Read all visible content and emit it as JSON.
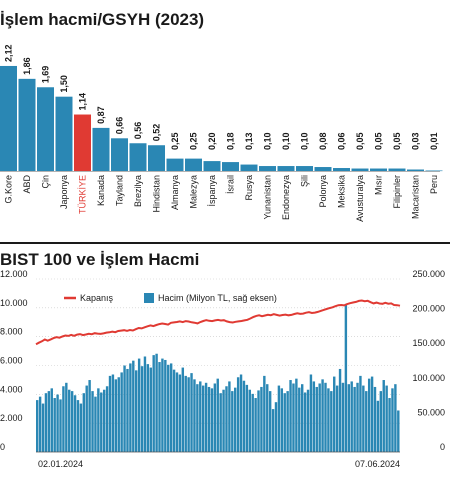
{
  "colors": {
    "bar": "#2a87b4",
    "highlight": "#e03a33",
    "line": "#e03a33",
    "volume": "#2a87b4",
    "text": "#1a1a1a",
    "grid": "#c8c8c8"
  },
  "chart_data": [
    {
      "type": "bar",
      "title": "İşlem hacmi/GSYH (2023)",
      "categories": [
        "G.Kore",
        "ABD",
        "Çin",
        "Japonya",
        "TÜRKİYE",
        "Kanada",
        "Tayland",
        "Brezilya",
        "Hindistan",
        "Almanya",
        "Malezya",
        "İspanya",
        "İsrail",
        "Rusya",
        "Yunanistan",
        "Endonezya",
        "Şili",
        "Polonya",
        "Meksika",
        "Avusturalya",
        "Mısır",
        "Filipinler",
        "Macaristan",
        "Peru"
      ],
      "value_labels": [
        "2,12",
        "1,86",
        "1,69",
        "1,50",
        "1,14",
        "0,87",
        "0,66",
        "0,56",
        "0,52",
        "0,25",
        "0,25",
        "0,20",
        "0,18",
        "0,13",
        "0,10",
        "0,10",
        "0,10",
        "0,08",
        "0,06",
        "0,05",
        "0,05",
        "0,05",
        "0,03",
        "0,01"
      ],
      "values": [
        2.12,
        1.86,
        1.69,
        1.5,
        1.14,
        0.87,
        0.66,
        0.56,
        0.52,
        0.25,
        0.25,
        0.2,
        0.18,
        0.13,
        0.1,
        0.1,
        0.1,
        0.08,
        0.06,
        0.05,
        0.05,
        0.05,
        0.03,
        0.01
      ],
      "highlight": "TÜRKİYE",
      "ylim": [
        0,
        2.2
      ]
    },
    {
      "type": "bar+line",
      "title": "BIST 100 ve İşlem Hacmi",
      "legend": [
        "Kapanış",
        "Hacim (Milyon TL, sağ eksen)"
      ],
      "x_start": "02.01.2024",
      "x_end": "07.06.2024",
      "left_ticks": [
        "0",
        "2.000",
        "4.000",
        "6.000",
        "8.000",
        "10.000",
        "12.000"
      ],
      "right_ticks": [
        "0",
        "50.000",
        "100.000",
        "150.000",
        "200.000",
        "250.000"
      ],
      "ylim_left": [
        0,
        12000
      ],
      "ylim_right": [
        0,
        250000
      ],
      "series": [
        {
          "name": "Kapanış",
          "axis": "left",
          "values": [
            7470,
            7580,
            7680,
            7800,
            7720,
            7810,
            7900,
            7960,
            7930,
            8010,
            8080,
            8050,
            8120,
            8060,
            8140,
            8180,
            8110,
            8150,
            8200,
            8170,
            8240,
            8210,
            8190,
            8230,
            8280,
            8300,
            8350,
            8310,
            8390,
            8420,
            8450,
            8400,
            8460,
            8430,
            8520,
            8600,
            8570,
            8650,
            8720,
            8780,
            8730,
            8810,
            8870,
            8910,
            8880,
            8840,
            8960,
            8990,
            9020,
            9060,
            9010,
            9080,
            9050,
            9000,
            8970,
            8920,
            9020,
            9090,
            9150,
            9100,
            9080,
            9130,
            9160,
            9120,
            9140,
            9060,
            9010,
            8980,
            9030,
            9060,
            9090,
            9130,
            9170,
            9260,
            9360,
            9440,
            9480,
            9420,
            9470,
            9520,
            9490,
            9560,
            9510,
            9460,
            9500,
            9530,
            9480,
            9510,
            9570,
            9620,
            9580,
            9600,
            9660,
            9700,
            9640,
            9670,
            9720,
            9790,
            9860,
            9920,
            9980,
            10040,
            10110,
            10180,
            10200,
            10170,
            10260,
            10320,
            10370,
            10410,
            10480,
            10510,
            10460,
            10490,
            10390,
            10310,
            10360,
            10300,
            10280,
            10350,
            10290,
            10310,
            10200,
            10180,
            10150
          ]
        },
        {
          "name": "Hacim (Milyon TL, sağ eksen)",
          "axis": "right",
          "values": [
            75000,
            80000,
            70000,
            85000,
            88000,
            92000,
            78000,
            83000,
            76000,
            95000,
            100000,
            90000,
            88000,
            82000,
            75000,
            70000,
            85000,
            96000,
            104000,
            88000,
            80000,
            92000,
            86000,
            90000,
            95000,
            110000,
            112000,
            105000,
            108000,
            115000,
            125000,
            120000,
            128000,
            132000,
            118000,
            135000,
            124000,
            138000,
            127000,
            122000,
            140000,
            142000,
            130000,
            135000,
            133000,
            126000,
            128000,
            119000,
            115000,
            112000,
            122000,
            110000,
            108000,
            114000,
            105000,
            98000,
            102000,
            96000,
            100000,
            94000,
            92000,
            99000,
            106000,
            85000,
            90000,
            95000,
            102000,
            88000,
            93000,
            108000,
            112000,
            103000,
            97000,
            90000,
            84000,
            78000,
            89000,
            94000,
            110000,
            98000,
            88000,
            62000,
            72000,
            96000,
            92000,
            85000,
            88000,
            104000,
            99000,
            106000,
            93000,
            98000,
            86000,
            90000,
            112000,
            102000,
            94000,
            99000,
            105000,
            100000,
            92000,
            88000,
            109000,
            96000,
            120000,
            100000,
            214000,
            98000,
            102000,
            94000,
            100000,
            110000,
            96000,
            88000,
            106000,
            109000,
            94000,
            74000,
            88000,
            104000,
            96000,
            78000,
            92000,
            98000,
            60000
          ],
          "spike": "214.000 (yaklaşık)"
        }
      ]
    }
  ]
}
